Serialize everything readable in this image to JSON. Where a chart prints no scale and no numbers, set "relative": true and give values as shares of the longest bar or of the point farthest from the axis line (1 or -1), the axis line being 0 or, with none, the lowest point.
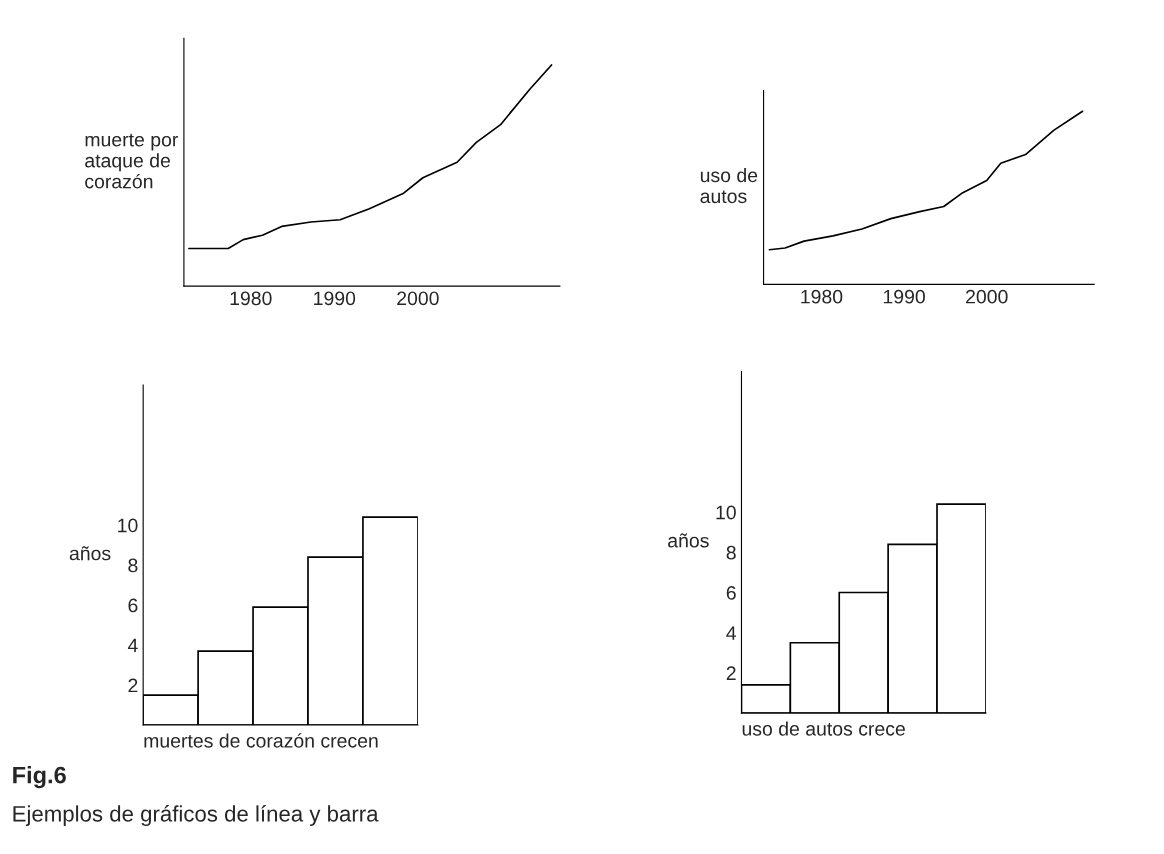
{
  "chart_data": [
    {
      "type": "line",
      "ylabel": "muerte por\nataque de\ncorazón",
      "relative": true,
      "xlim": [
        1972,
        2017
      ],
      "xticks": [
        1980,
        1990,
        2000
      ],
      "tick_labels": "x",
      "grid": false,
      "series": [
        {
          "color": "#000000",
          "x": [
            1972.6,
            1977.3,
            1979.1,
            1981.4,
            1983.7,
            1987.2,
            1990.7,
            1994.2,
            1998.3,
            2000.6,
            2004.7,
            2007.0,
            2009.9,
            2013.4,
            2016.0
          ],
          "values": [
            0.17,
            0.17,
            0.21,
            0.23,
            0.27,
            0.29,
            0.3,
            0.35,
            0.42,
            0.49,
            0.56,
            0.65,
            0.73,
            0.89,
            1.0
          ]
        }
      ]
    },
    {
      "type": "line",
      "ylabel": "uso de\nautos",
      "relative": true,
      "xlim": [
        1973,
        2013
      ],
      "xticks": [
        1980,
        1990,
        2000
      ],
      "tick_labels": "x",
      "grid": false,
      "series": [
        {
          "color": "#000000",
          "x": [
            1973.7,
            1975.6,
            1977.9,
            1981.4,
            1984.9,
            1988.4,
            1991.9,
            1994.8,
            1997.1,
            2000.0,
            2001.7,
            2004.7,
            2008.1,
            2011.6
          ],
          "values": [
            0.2,
            0.21,
            0.25,
            0.28,
            0.32,
            0.38,
            0.42,
            0.45,
            0.53,
            0.6,
            0.7,
            0.75,
            0.89,
            1.0
          ]
        }
      ]
    },
    {
      "type": "bar",
      "ylabel": "años",
      "xlabel": "muertes de corazón crecen",
      "categories": [
        null,
        null,
        null,
        null,
        null
      ],
      "values": [
        1.5,
        3.7,
        5.9,
        8.4,
        10.4
      ],
      "color": "#ffffff",
      "ylim": [
        0,
        17
      ],
      "yticks": [
        2,
        4,
        6,
        8,
        10
      ],
      "tick_labels": "y",
      "grid": false
    },
    {
      "type": "bar",
      "ylabel": "años",
      "xlabel": "uso de autos crece",
      "categories": [
        null,
        null,
        null,
        null,
        null
      ],
      "values": [
        1.4,
        3.5,
        6.0,
        8.4,
        10.4
      ],
      "color": "#ffffff",
      "ylim": [
        0,
        17
      ],
      "yticks": [
        2,
        4,
        6,
        8,
        10
      ],
      "tick_labels": "y",
      "grid": false,
      "annotations": [
        "Fig.6",
        "Ejemplos de gráficos de línea y barra"
      ]
    }
  ]
}
